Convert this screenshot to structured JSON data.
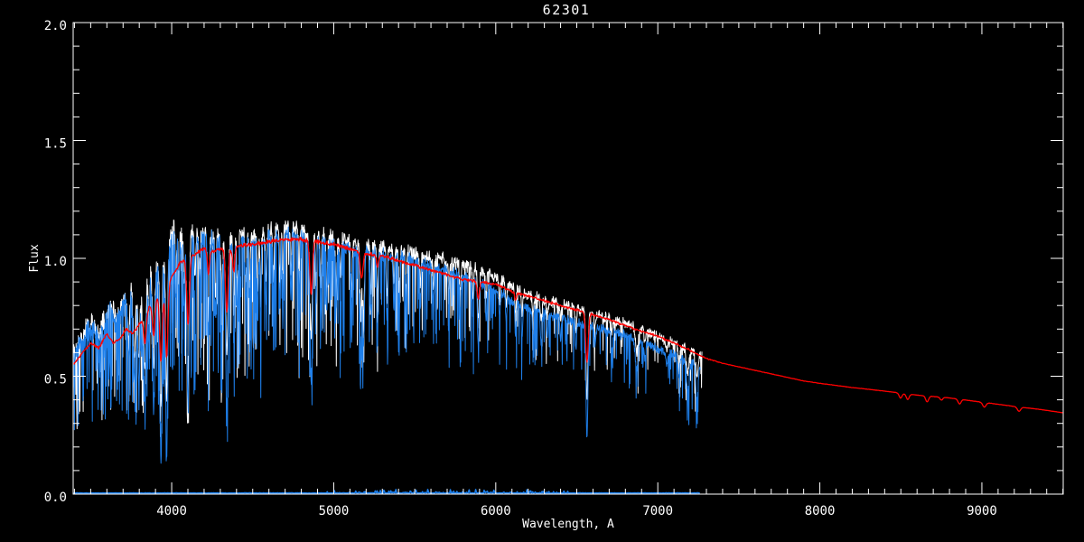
{
  "window": {
    "background": "#000000"
  },
  "chart_data": {
    "type": "line",
    "title": "62301",
    "xlabel": "Wavelength, A",
    "ylabel": "Flux",
    "xlim": [
      3392,
      9502
    ],
    "ylim": [
      0.0,
      2.0
    ],
    "x_ticks_major": [
      4000,
      5000,
      6000,
      7000,
      8000,
      9000
    ],
    "x_tick_labels": [
      "4000",
      "5000",
      "6000",
      "7000",
      "8000",
      "9000"
    ],
    "x_tick_minor_step": 100,
    "y_ticks_major": [
      0.0,
      0.5,
      1.0,
      1.5,
      2.0
    ],
    "y_tick_labels": [
      "0.0",
      "0.5",
      "1.0",
      "1.5",
      "2.0"
    ],
    "y_tick_minor_step": 0.1,
    "grid": false,
    "legend": "none",
    "axis_color": "#FFFFFF",
    "background_color": "#000000",
    "accent_colors": {
      "observed_a": "#FFFFFF",
      "observed_b": "#1E7FEA",
      "model": "#FF0000"
    },
    "spectrum_model": {
      "continuum": [
        [
          3392,
          0.6
        ],
        [
          3430,
          0.65
        ],
        [
          3470,
          0.7
        ],
        [
          3510,
          0.72
        ],
        [
          3550,
          0.68
        ],
        [
          3590,
          0.76
        ],
        [
          3630,
          0.8
        ],
        [
          3660,
          0.74
        ],
        [
          3700,
          0.83
        ],
        [
          3740,
          0.87
        ],
        [
          3780,
          0.83
        ],
        [
          3820,
          0.89
        ],
        [
          3860,
          0.92
        ],
        [
          3900,
          0.95
        ],
        [
          3940,
          1.0
        ],
        [
          3980,
          1.07
        ],
        [
          4020,
          1.11
        ],
        [
          4060,
          1.1
        ],
        [
          4100,
          1.09
        ],
        [
          4140,
          1.1
        ],
        [
          4180,
          1.12
        ],
        [
          4220,
          1.11
        ],
        [
          4260,
          1.09
        ],
        [
          4300,
          1.1
        ],
        [
          4340,
          1.07
        ],
        [
          4380,
          1.09
        ],
        [
          4420,
          1.1
        ],
        [
          4460,
          1.1
        ],
        [
          4500,
          1.1
        ],
        [
          4550,
          1.1
        ],
        [
          4600,
          1.11
        ],
        [
          4650,
          1.12
        ],
        [
          4700,
          1.13
        ],
        [
          4750,
          1.13
        ],
        [
          4800,
          1.12
        ],
        [
          4861,
          1.08
        ],
        [
          4900,
          1.11
        ],
        [
          4950,
          1.1
        ],
        [
          5000,
          1.09
        ],
        [
          5050,
          1.08
        ],
        [
          5100,
          1.07
        ],
        [
          5150,
          1.05
        ],
        [
          5200,
          1.06
        ],
        [
          5250,
          1.06
        ],
        [
          5300,
          1.05
        ],
        [
          5350,
          1.04
        ],
        [
          5400,
          1.04
        ],
        [
          5450,
          1.03
        ],
        [
          5500,
          1.02
        ],
        [
          5550,
          1.01
        ],
        [
          5600,
          1.0
        ],
        [
          5650,
          1.0
        ],
        [
          5700,
          0.99
        ],
        [
          5750,
          0.98
        ],
        [
          5800,
          0.97
        ],
        [
          5850,
          0.96
        ],
        [
          5900,
          0.95
        ],
        [
          5950,
          0.94
        ],
        [
          6000,
          0.92
        ],
        [
          6050,
          0.9
        ],
        [
          6100,
          0.88
        ],
        [
          6150,
          0.86
        ],
        [
          6200,
          0.845
        ],
        [
          6250,
          0.835
        ],
        [
          6300,
          0.825
        ],
        [
          6350,
          0.815
        ],
        [
          6400,
          0.805
        ],
        [
          6450,
          0.795
        ],
        [
          6500,
          0.785
        ],
        [
          6550,
          0.775
        ],
        [
          6600,
          0.765
        ],
        [
          6650,
          0.755
        ],
        [
          6700,
          0.745
        ],
        [
          6750,
          0.735
        ],
        [
          6800,
          0.725
        ],
        [
          6850,
          0.715
        ],
        [
          6900,
          0.7
        ],
        [
          6950,
          0.685
        ],
        [
          7000,
          0.67
        ],
        [
          7050,
          0.655
        ],
        [
          7100,
          0.64
        ],
        [
          7150,
          0.625
        ],
        [
          7200,
          0.61
        ],
        [
          7272,
          0.59
        ]
      ],
      "blue_offset": [
        [
          3392,
          0.025
        ],
        [
          4500,
          0.025
        ],
        [
          5400,
          0.03
        ],
        [
          5700,
          0.042
        ],
        [
          5900,
          0.055
        ],
        [
          6200,
          0.06
        ],
        [
          6700,
          0.055
        ],
        [
          7272,
          0.05
        ]
      ],
      "absorption_lines": [
        [
          3734,
          0.34,
          6
        ],
        [
          3770,
          0.4,
          6
        ],
        [
          3798,
          0.45,
          6
        ],
        [
          3820,
          0.25,
          4
        ],
        [
          3835,
          0.58,
          6
        ],
        [
          3860,
          0.28,
          4
        ],
        [
          3889,
          0.6,
          6
        ],
        [
          3934,
          0.87,
          6
        ],
        [
          3969,
          0.86,
          6
        ],
        [
          4026,
          0.22,
          4
        ],
        [
          4045,
          0.24,
          4
        ],
        [
          4077,
          0.26,
          4
        ],
        [
          4101,
          0.64,
          7
        ],
        [
          4144,
          0.26,
          4
        ],
        [
          4173,
          0.24,
          4
        ],
        [
          4227,
          0.38,
          5
        ],
        [
          4271,
          0.3,
          4
        ],
        [
          4308,
          0.34,
          5
        ],
        [
          4340,
          0.64,
          7
        ],
        [
          4383,
          0.42,
          4
        ],
        [
          4405,
          0.32,
          4
        ],
        [
          4457,
          0.26,
          4
        ],
        [
          4481,
          0.24,
          4
        ],
        [
          4531,
          0.3,
          4
        ],
        [
          4549,
          0.42,
          3
        ],
        [
          4583,
          0.26,
          4
        ],
        [
          4629,
          0.24,
          4
        ],
        [
          4668,
          0.28,
          4
        ],
        [
          4686,
          0.36,
          3
        ],
        [
          4736,
          0.24,
          4
        ],
        [
          4786,
          0.22,
          4
        ],
        [
          4861,
          0.55,
          7
        ],
        [
          4891,
          0.26,
          4
        ],
        [
          4920,
          0.3,
          4
        ],
        [
          4957,
          0.28,
          4
        ],
        [
          5015,
          0.26,
          4
        ],
        [
          5041,
          0.22,
          4
        ],
        [
          5110,
          0.28,
          4
        ],
        [
          5167,
          0.42,
          5
        ],
        [
          5184,
          0.38,
          6
        ],
        [
          5230,
          0.24,
          4
        ],
        [
          5270,
          0.32,
          5
        ],
        [
          5328,
          0.26,
          4
        ],
        [
          5371,
          0.22,
          4
        ],
        [
          5405,
          0.22,
          4
        ],
        [
          5446,
          0.2,
          4
        ],
        [
          5535,
          0.18,
          4
        ],
        [
          5615,
          0.18,
          4
        ],
        [
          5711,
          0.16,
          4
        ],
        [
          5782,
          0.16,
          4
        ],
        [
          5860,
          0.18,
          4
        ],
        [
          5892,
          0.3,
          5
        ],
        [
          5940,
          0.16,
          4
        ],
        [
          6024,
          0.14,
          4
        ],
        [
          6065,
          0.14,
          4
        ],
        [
          6122,
          0.18,
          4
        ],
        [
          6162,
          0.16,
          4
        ],
        [
          6230,
          0.14,
          4
        ],
        [
          6280,
          0.16,
          5
        ],
        [
          6318,
          0.12,
          4
        ],
        [
          6400,
          0.12,
          4
        ],
        [
          6495,
          0.16,
          4
        ],
        [
          6563,
          0.67,
          6
        ],
        [
          6614,
          0.1,
          4
        ],
        [
          6717,
          0.1,
          4
        ],
        [
          6870,
          0.2,
          9
        ],
        [
          6920,
          0.1,
          5
        ],
        [
          7055,
          0.1,
          5
        ],
        [
          7130,
          0.14,
          5
        ],
        [
          7185,
          0.22,
          8
        ],
        [
          7242,
          0.26,
          7
        ]
      ],
      "noise_amp": [
        [
          3392,
          0.085
        ],
        [
          3800,
          0.075
        ],
        [
          4200,
          0.05
        ],
        [
          4700,
          0.04
        ],
        [
          5200,
          0.035
        ],
        [
          5800,
          0.034
        ],
        [
          6300,
          0.034
        ],
        [
          6800,
          0.04
        ],
        [
          7272,
          0.045
        ]
      ],
      "spike_prob": [
        [
          3392,
          0.28
        ],
        [
          3900,
          0.3
        ],
        [
          4300,
          0.24
        ],
        [
          4800,
          0.2
        ],
        [
          5300,
          0.16
        ],
        [
          5900,
          0.12
        ],
        [
          6500,
          0.1
        ],
        [
          7272,
          0.13
        ]
      ],
      "spike_depth_max": [
        [
          3392,
          0.45
        ],
        [
          4000,
          0.5
        ],
        [
          4600,
          0.42
        ],
        [
          5100,
          0.32
        ],
        [
          5600,
          0.25
        ],
        [
          6200,
          0.22
        ],
        [
          6800,
          0.22
        ],
        [
          7272,
          0.28
        ]
      ]
    },
    "series": [
      {
        "name": "observed-spectrum-white",
        "style": "noisy-spectrum",
        "color": "#FFFFFF",
        "x_range": [
          3392,
          7272
        ],
        "step": 2,
        "seed": 101,
        "width": 1,
        "line_depth_scale": 0.72,
        "noise_scale": 1.0,
        "spike_scale": 0.72,
        "use_blue_offset": false
      },
      {
        "name": "observed-spectrum-blue",
        "style": "noisy-spectrum",
        "color": "#1E7FEA",
        "x_range": [
          3392,
          7262
        ],
        "step": 2,
        "seed": 202,
        "width": 1,
        "line_depth_scale": 1.0,
        "noise_scale": 1.0,
        "spike_scale": 1.0,
        "use_blue_offset": true
      },
      {
        "name": "noise-floor-blue",
        "style": "baseline",
        "color": "#1E7FEA",
        "x_range": [
          3392,
          7262
        ],
        "step": 4,
        "seed": 77,
        "width": 1.6,
        "base_flux": 0.004,
        "bump_region": [
          4950,
          6450
        ],
        "bump_max": 0.016
      },
      {
        "name": "model-fit-red",
        "style": "smooth-spectrum",
        "color": "#FF0000",
        "x_range": [
          3392,
          9502
        ],
        "step": 3,
        "seed": 55,
        "width": 1.3,
        "continuum": [
          [
            3392,
            0.55
          ],
          [
            3450,
            0.6
          ],
          [
            3500,
            0.64
          ],
          [
            3550,
            0.62
          ],
          [
            3600,
            0.68
          ],
          [
            3640,
            0.64
          ],
          [
            3680,
            0.66
          ],
          [
            3720,
            0.7
          ],
          [
            3760,
            0.68
          ],
          [
            3800,
            0.72
          ],
          [
            3850,
            0.78
          ],
          [
            3900,
            0.83
          ],
          [
            3950,
            0.86
          ],
          [
            4000,
            0.92
          ],
          [
            4050,
            0.98
          ],
          [
            4100,
            1.0
          ],
          [
            4150,
            1.02
          ],
          [
            4200,
            1.04
          ],
          [
            4250,
            1.03
          ],
          [
            4300,
            1.04
          ],
          [
            4350,
            1.03
          ],
          [
            4400,
            1.05
          ],
          [
            4500,
            1.06
          ],
          [
            4600,
            1.07
          ],
          [
            4700,
            1.08
          ],
          [
            4800,
            1.08
          ],
          [
            4900,
            1.07
          ],
          [
            5000,
            1.06
          ],
          [
            5100,
            1.04
          ],
          [
            5200,
            1.02
          ],
          [
            5300,
            1.01
          ],
          [
            5400,
            0.99
          ],
          [
            5500,
            0.97
          ],
          [
            5600,
            0.95
          ],
          [
            5700,
            0.93
          ],
          [
            5800,
            0.91
          ],
          [
            5900,
            0.9
          ],
          [
            6000,
            0.89
          ],
          [
            6100,
            0.86
          ],
          [
            6200,
            0.84
          ],
          [
            6300,
            0.82
          ],
          [
            6400,
            0.8
          ],
          [
            6500,
            0.78
          ],
          [
            6600,
            0.76
          ],
          [
            6700,
            0.74
          ],
          [
            6800,
            0.715
          ],
          [
            6900,
            0.69
          ],
          [
            7000,
            0.67
          ],
          [
            7100,
            0.64
          ],
          [
            7200,
            0.61
          ],
          [
            7300,
            0.575
          ],
          [
            7400,
            0.555
          ],
          [
            7500,
            0.54
          ],
          [
            7600,
            0.525
          ],
          [
            7700,
            0.51
          ],
          [
            7800,
            0.495
          ],
          [
            7900,
            0.48
          ],
          [
            8000,
            0.47
          ],
          [
            8200,
            0.452
          ],
          [
            8400,
            0.437
          ],
          [
            8600,
            0.42
          ],
          [
            8800,
            0.408
          ],
          [
            9000,
            0.39
          ],
          [
            9200,
            0.372
          ],
          [
            9350,
            0.36
          ],
          [
            9502,
            0.345
          ]
        ],
        "lines": [
          [
            3835,
            0.16,
            8
          ],
          [
            3889,
            0.18,
            8
          ],
          [
            3934,
            0.34,
            8
          ],
          [
            3969,
            0.34,
            8
          ],
          [
            4101,
            0.28,
            8
          ],
          [
            4227,
            0.1,
            6
          ],
          [
            4340,
            0.25,
            8
          ],
          [
            4383,
            0.1,
            6
          ],
          [
            4861,
            0.21,
            8
          ],
          [
            5172,
            0.11,
            8
          ],
          [
            5270,
            0.05,
            6
          ],
          [
            5892,
            0.08,
            7
          ],
          [
            6122,
            0.04,
            5
          ],
          [
            6563,
            0.27,
            8
          ],
          [
            8498,
            0.05,
            9
          ],
          [
            8542,
            0.055,
            9
          ],
          [
            8662,
            0.06,
            9
          ],
          [
            8750,
            0.03,
            8
          ],
          [
            8862,
            0.05,
            9
          ],
          [
            9015,
            0.05,
            10
          ],
          [
            9229,
            0.05,
            10
          ]
        ],
        "amp_points": [
          [
            3392,
            0.01
          ],
          [
            7200,
            0.008
          ],
          [
            7400,
            0.002
          ],
          [
            9502,
            0.002
          ]
        ]
      }
    ]
  }
}
